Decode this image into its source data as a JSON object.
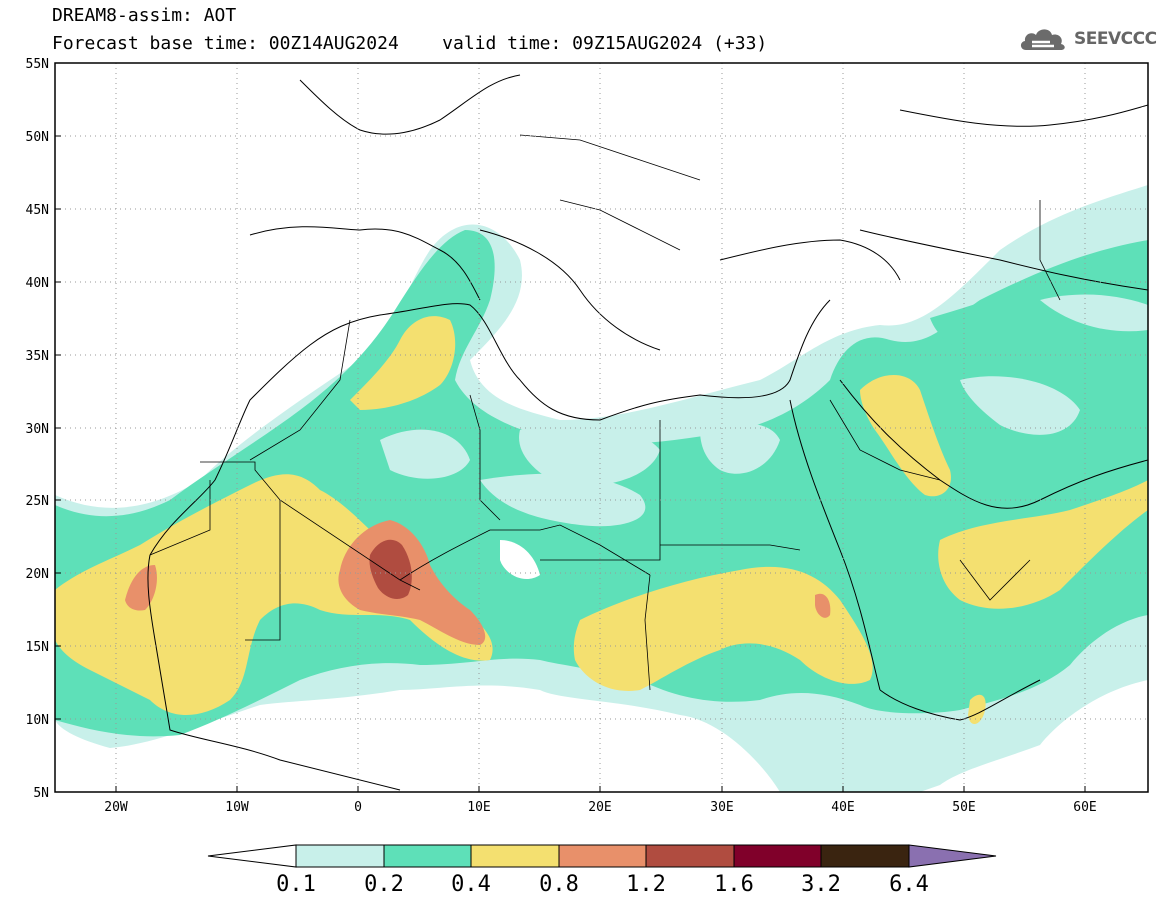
{
  "title": {
    "line1": "DREAM8-assim: AOT",
    "base_time": "Forecast base time: 00Z14AUG2024",
    "valid_time": "valid time: 09Z15AUG2024 (+33)"
  },
  "logo": {
    "text": "SEEVCCC",
    "icon": "cloud-icon"
  },
  "axes": {
    "lon_ticks": [
      "20W",
      "10W",
      "0",
      "10E",
      "20E",
      "30E",
      "40E",
      "50E",
      "60E"
    ],
    "lat_ticks": [
      "55N",
      "50N",
      "45N",
      "40N",
      "35N",
      "30N",
      "25N",
      "20N",
      "15N",
      "10N",
      "5N"
    ]
  },
  "colorbar": {
    "labels": [
      "0.1",
      "0.2",
      "0.4",
      "0.8",
      "1.2",
      "1.6",
      "3.2",
      "6.4"
    ],
    "colors": [
      "#c8f0ea",
      "#5ee0b8",
      "#f4e070",
      "#e8906a",
      "#b04c40",
      "#80002a",
      "#3a2410",
      "#8a70b0"
    ]
  },
  "field_colors": {
    "c01": "#c8f0ea",
    "c02": "#5ee0b8",
    "c04": "#f4e070",
    "c08": "#e8906a",
    "c12": "#b04c40",
    "c16": "#80002a"
  }
}
